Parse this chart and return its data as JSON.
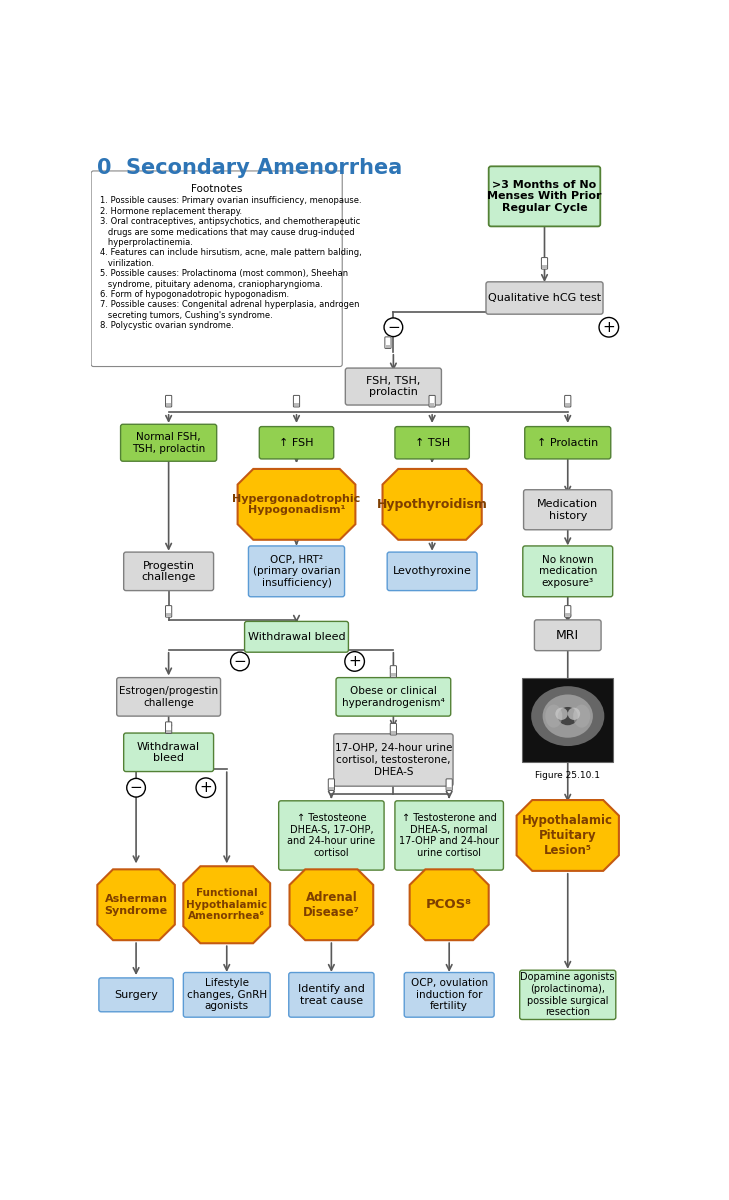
{
  "title": "0  Secondary Amenorrhea",
  "title_color": "#2e75b6",
  "bg_color": "#ffffff",
  "footnotes_title": "Footnotes",
  "footnotes_lines": [
    "1. Possible causes: Primary ovarian insufficiency, menopause.",
    "2. Hormone replacement therapy.",
    "3. Oral contraceptives, antipsychotics, and chemotherapeutic",
    "   drugs are some medications that may cause drug-induced",
    "   hyperprolactinemia.",
    "4. Features can include hirsutism, acne, male pattern balding,",
    "   virilization.",
    "5. Possible causes: Prolactinoma (most common), Sheehan",
    "   syndrome, pituitary adenoma, craniopharyngioma.",
    "6. Form of hypogonadotropic hypogonadism.",
    "7. Possible causes: Congenital adrenal hyperplasia, androgen",
    "   secreting tumors, Cushing's syndrome.",
    "8. Polycystic ovarian syndrome."
  ],
  "green_face": "#92d050",
  "green_edge": "#538135",
  "ltgreen_face": "#c6efce",
  "ltgreen_edge": "#538135",
  "blue_face": "#bdd7ee",
  "blue_edge": "#5b9bd5",
  "gray_face": "#d9d9d9",
  "gray_edge": "#808080",
  "orange_face": "#ffc000",
  "orange_edge": "#c55a11",
  "arrow_color": "#595959",
  "orange_text": "#7f3f00"
}
